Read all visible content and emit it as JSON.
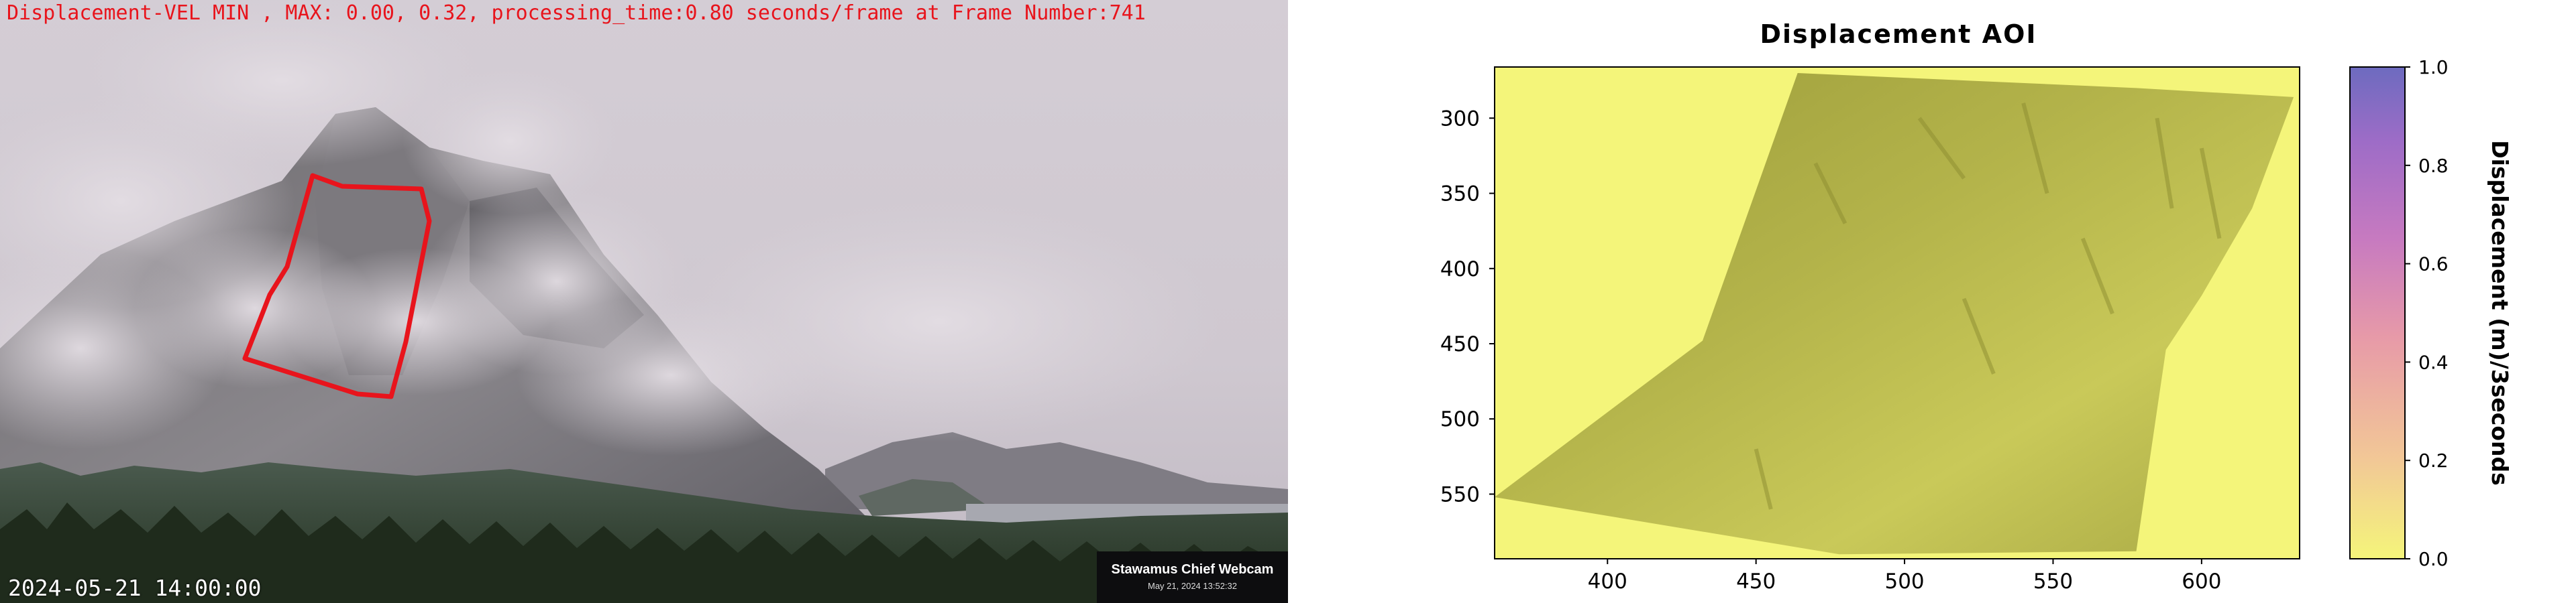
{
  "webcam": {
    "header_text": "Displacement-VEL MIN , MAX: 0.00, 0.32, processing_time:0.80 seconds/frame at Frame Number:741",
    "timestamp_text": "2024-05-21 14:00:00",
    "badge": {
      "title": "Stawamus Chief Webcam",
      "subtitle": "May 21, 2024 13:52:32"
    },
    "aoi_outline_color": "#e8141c"
  },
  "chart_data": {
    "type": "heatmap",
    "title": "Displacement AOI",
    "x_ticks": [
      400,
      450,
      500,
      550,
      600
    ],
    "y_ticks": [
      300,
      350,
      400,
      450,
      500,
      550
    ],
    "xlim": [
      362,
      633
    ],
    "ylim": [
      593,
      266
    ],
    "colorbar": {
      "label": "Displacement (m)/3seconds",
      "ticks": [
        "0.0",
        "0.2",
        "0.4",
        "0.6",
        "0.8",
        "1.0"
      ],
      "range": [
        0.0,
        1.0
      ],
      "colors": [
        "#f4f57a",
        "#f2c896",
        "#e79aa8",
        "#c77ac0",
        "#9d6cc7",
        "#6d6bbf"
      ]
    },
    "grid": false,
    "background_value": 0.0
  }
}
